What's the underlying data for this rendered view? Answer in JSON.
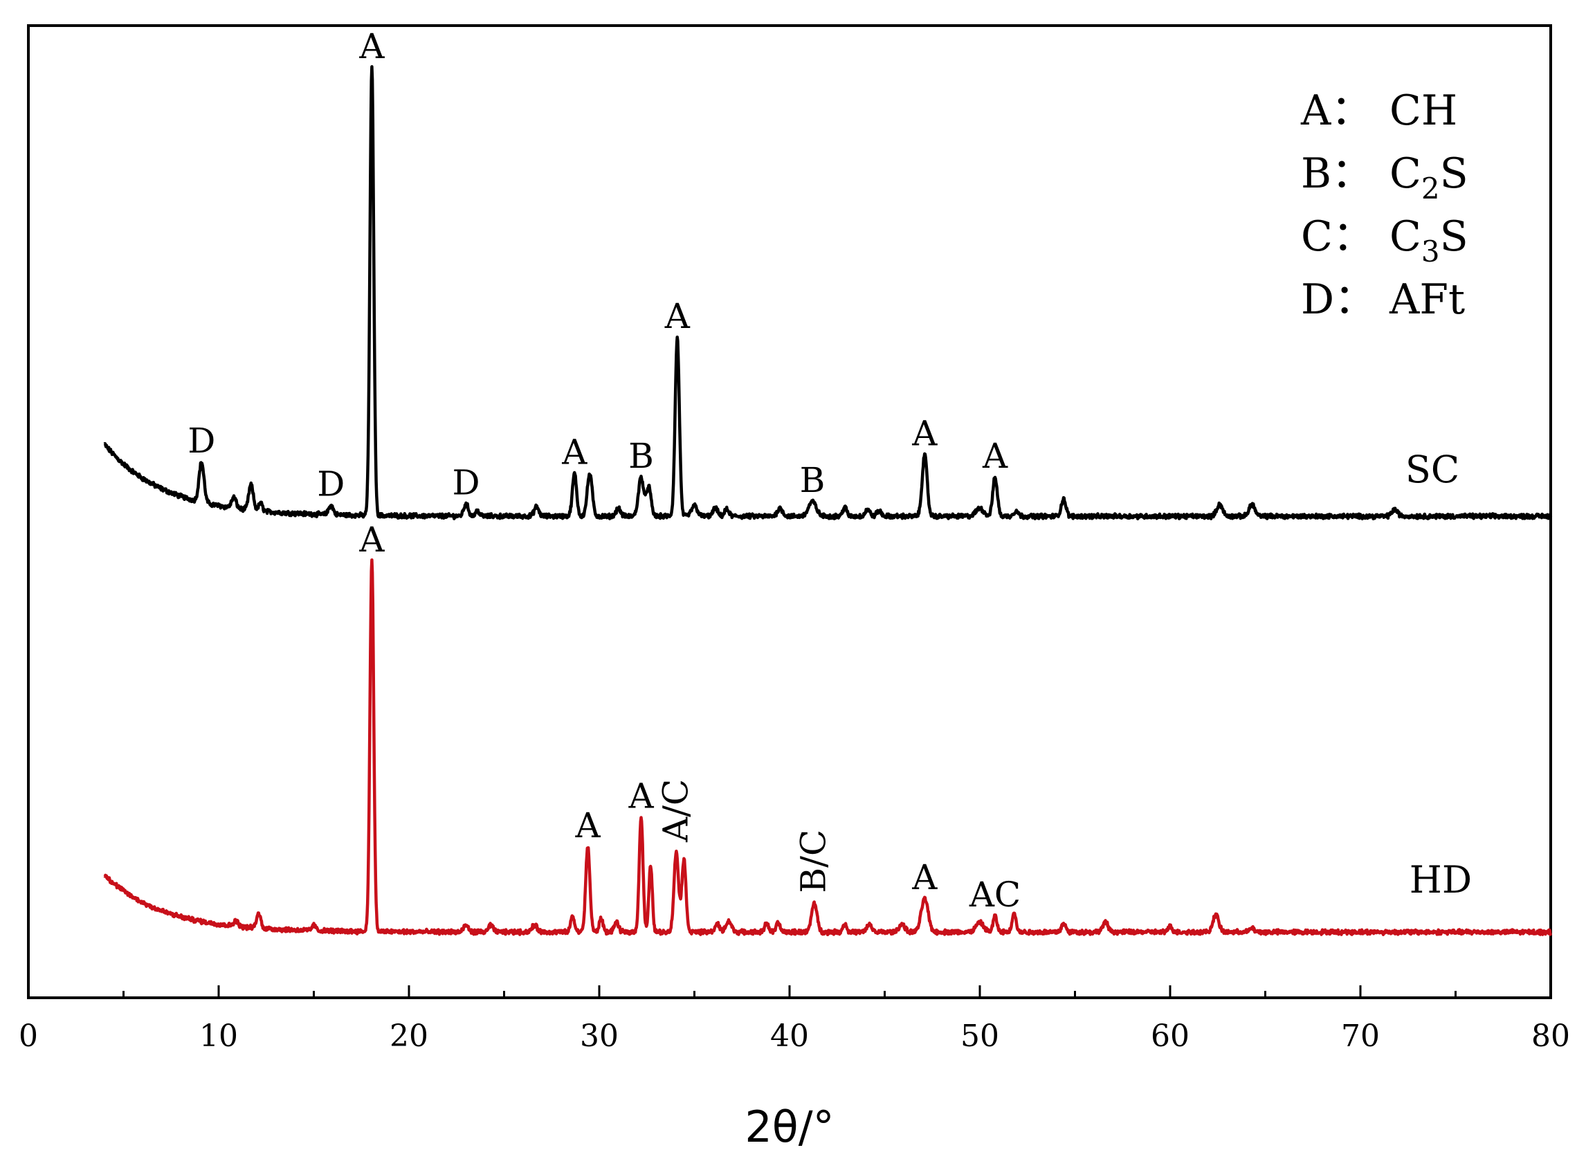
{
  "chart_data": {
    "type": "line",
    "xlabel": "2θ/°",
    "ylabel": "",
    "xlim": [
      0,
      80
    ],
    "xticks": [
      0,
      10,
      20,
      30,
      40,
      50,
      60,
      70,
      80
    ],
    "xticks_minor": [
      5,
      15,
      25,
      35,
      45,
      55,
      65,
      75
    ],
    "yaxis_ticks_shown": false,
    "grid": false,
    "legend": {
      "placement": "top-right",
      "entries": [
        {
          "key": "A：",
          "name": "CH",
          "sub": "",
          "suffix": ""
        },
        {
          "key": "B：",
          "name": "C",
          "sub": "2",
          "suffix": "S"
        },
        {
          "key": "C：",
          "name": "C",
          "sub": "3",
          "suffix": "S"
        },
        {
          "key": "D：",
          "name": "AFt",
          "sub": "",
          "suffix": ""
        }
      ]
    },
    "series": [
      {
        "name": "SC",
        "color": "#000000",
        "baseline": {
          "start": 2.75,
          "end": 0.05,
          "decay": 0.32,
          "x_start": 4,
          "x_end": 80
        },
        "peaks": [
          {
            "x": 9.1,
            "h": 1.5,
            "w": 0.13,
            "label": "D"
          },
          {
            "x": 10.8,
            "h": 0.4,
            "w": 0.12
          },
          {
            "x": 11.7,
            "h": 0.95,
            "w": 0.12
          },
          {
            "x": 12.2,
            "h": 0.3,
            "w": 0.1
          },
          {
            "x": 15.9,
            "h": 0.35,
            "w": 0.12,
            "label": "D"
          },
          {
            "x": 18.05,
            "h": 16.8,
            "w": 0.1,
            "label": "A"
          },
          {
            "x": 23.0,
            "h": 0.45,
            "w": 0.12,
            "label": "D"
          },
          {
            "x": 23.6,
            "h": 0.2,
            "w": 0.1
          },
          {
            "x": 26.7,
            "h": 0.35,
            "w": 0.12
          },
          {
            "x": 28.7,
            "h": 1.6,
            "w": 0.11,
            "label": "A"
          },
          {
            "x": 29.5,
            "h": 1.6,
            "w": 0.13
          },
          {
            "x": 31.0,
            "h": 0.3,
            "w": 0.12
          },
          {
            "x": 32.2,
            "h": 1.45,
            "w": 0.14,
            "label": "B"
          },
          {
            "x": 32.6,
            "h": 1.1,
            "w": 0.12
          },
          {
            "x": 34.1,
            "h": 6.7,
            "w": 0.11,
            "label": "A"
          },
          {
            "x": 35.0,
            "h": 0.4,
            "w": 0.15
          },
          {
            "x": 36.1,
            "h": 0.3,
            "w": 0.12
          },
          {
            "x": 36.7,
            "h": 0.25,
            "w": 0.12
          },
          {
            "x": 39.5,
            "h": 0.3,
            "w": 0.14
          },
          {
            "x": 41.2,
            "h": 0.55,
            "w": 0.2,
            "label": "B"
          },
          {
            "x": 42.9,
            "h": 0.35,
            "w": 0.1
          },
          {
            "x": 44.1,
            "h": 0.25,
            "w": 0.12
          },
          {
            "x": 44.7,
            "h": 0.2,
            "w": 0.12
          },
          {
            "x": 47.1,
            "h": 2.3,
            "w": 0.13,
            "label": "A"
          },
          {
            "x": 50.0,
            "h": 0.3,
            "w": 0.2
          },
          {
            "x": 50.8,
            "h": 1.45,
            "w": 0.12,
            "label": "A"
          },
          {
            "x": 51.9,
            "h": 0.2,
            "w": 0.12
          },
          {
            "x": 54.4,
            "h": 0.65,
            "w": 0.12
          },
          {
            "x": 62.6,
            "h": 0.45,
            "w": 0.15
          },
          {
            "x": 64.3,
            "h": 0.45,
            "w": 0.15
          },
          {
            "x": 71.8,
            "h": 0.25,
            "w": 0.15
          }
        ]
      },
      {
        "name": "HD",
        "color": "#c8101a",
        "baseline": {
          "start": 2.15,
          "end": 0.0,
          "decay": 0.33,
          "x_start": 4,
          "x_end": 80
        },
        "peaks": [
          {
            "x": 10.9,
            "h": 0.2,
            "w": 0.12
          },
          {
            "x": 12.1,
            "h": 0.55,
            "w": 0.11
          },
          {
            "x": 15.0,
            "h": 0.2,
            "w": 0.1
          },
          {
            "x": 18.05,
            "h": 13.9,
            "w": 0.1,
            "label": "A"
          },
          {
            "x": 23.0,
            "h": 0.25,
            "w": 0.12
          },
          {
            "x": 24.3,
            "h": 0.25,
            "w": 0.12
          },
          {
            "x": 26.6,
            "h": 0.25,
            "w": 0.14
          },
          {
            "x": 28.6,
            "h": 0.6,
            "w": 0.1
          },
          {
            "x": 29.4,
            "h": 3.2,
            "w": 0.11,
            "label": "A"
          },
          {
            "x": 30.1,
            "h": 0.5,
            "w": 0.1
          },
          {
            "x": 30.9,
            "h": 0.35,
            "w": 0.12
          },
          {
            "x": 32.2,
            "h": 4.3,
            "w": 0.1,
            "label": "A"
          },
          {
            "x": 32.7,
            "h": 2.5,
            "w": 0.09
          },
          {
            "x": 34.05,
            "h": 3.0,
            "w": 0.12,
            "label": "A/C",
            "rotate": true
          },
          {
            "x": 34.45,
            "h": 2.7,
            "w": 0.11
          },
          {
            "x": 36.2,
            "h": 0.3,
            "w": 0.12
          },
          {
            "x": 36.8,
            "h": 0.4,
            "w": 0.15
          },
          {
            "x": 38.8,
            "h": 0.35,
            "w": 0.1
          },
          {
            "x": 39.4,
            "h": 0.35,
            "w": 0.1
          },
          {
            "x": 41.3,
            "h": 1.1,
            "w": 0.14,
            "label": "B/C",
            "rotate": true
          },
          {
            "x": 42.9,
            "h": 0.3,
            "w": 0.1
          },
          {
            "x": 44.2,
            "h": 0.3,
            "w": 0.12
          },
          {
            "x": 45.9,
            "h": 0.3,
            "w": 0.15
          },
          {
            "x": 47.1,
            "h": 1.25,
            "w": 0.18,
            "label": "A"
          },
          {
            "x": 50.0,
            "h": 0.35,
            "w": 0.2
          },
          {
            "x": 50.8,
            "h": 0.6,
            "w": 0.1,
            "label": "AC"
          },
          {
            "x": 51.8,
            "h": 0.75,
            "w": 0.1
          },
          {
            "x": 54.4,
            "h": 0.3,
            "w": 0.12
          },
          {
            "x": 56.6,
            "h": 0.35,
            "w": 0.15
          },
          {
            "x": 60.0,
            "h": 0.2,
            "w": 0.12
          },
          {
            "x": 62.4,
            "h": 0.65,
            "w": 0.15
          },
          {
            "x": 64.3,
            "h": 0.15,
            "w": 0.12
          }
        ]
      }
    ]
  }
}
